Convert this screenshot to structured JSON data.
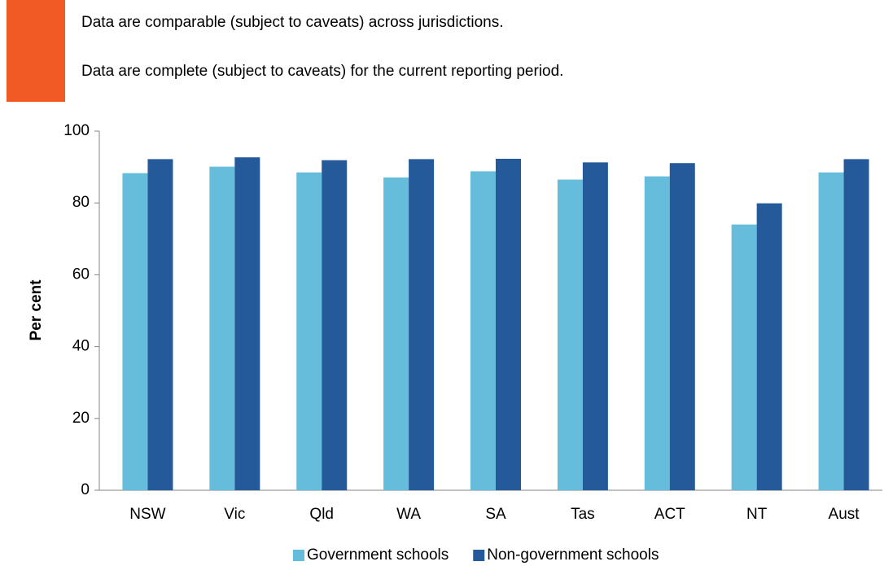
{
  "notes": [
    "Data are comparable (subject to caveats) across jurisdictions.",
    "Data are complete (subject to caveats) for the current reporting period."
  ],
  "chart_data": {
    "type": "bar",
    "y_label": "Per cent",
    "categories": [
      "NSW",
      "Vic",
      "Qld",
      "WA",
      "SA",
      "Tas",
      "ACT",
      "NT",
      "Aust"
    ],
    "series": [
      {
        "name": "Government schools",
        "color": "#66bcdb",
        "values": [
          88.3,
          90.1,
          88.5,
          87.1,
          88.8,
          86.5,
          87.4,
          74.0,
          88.5
        ]
      },
      {
        "name": "Non-government schools",
        "color": "#255a9a",
        "values": [
          92.2,
          92.7,
          91.9,
          92.2,
          92.3,
          91.3,
          91.1,
          79.9,
          92.2
        ]
      }
    ],
    "ylim": [
      0,
      100
    ],
    "yticks": [
      0,
      20,
      40,
      60,
      80,
      100
    ],
    "grid": false,
    "legend": "bottom"
  }
}
